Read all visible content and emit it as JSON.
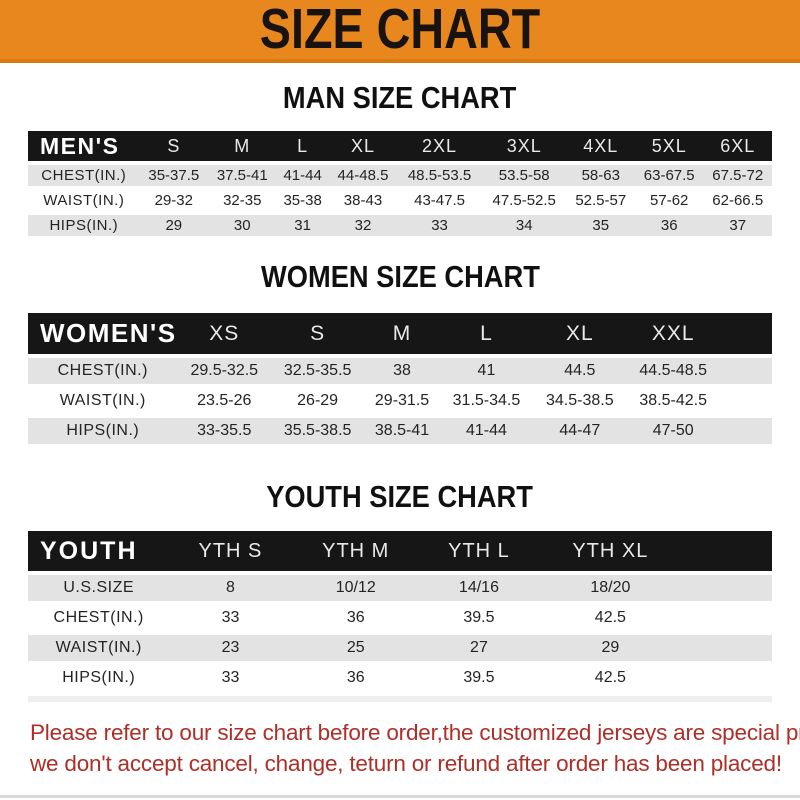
{
  "banner": {
    "title": "SIZE CHART"
  },
  "colors": {
    "banner-bg": "#E8871E",
    "banner-edge": "#D97912",
    "bar-bg": "#161616",
    "row-gray": "#E3E3E3",
    "footer-red": "#AE2E28"
  },
  "sections": [
    {
      "heading": "MAN SIZE CHART",
      "table": {
        "label": "MEN'S",
        "columns": [
          "S",
          "M",
          "L",
          "XL",
          "2XL",
          "3XL",
          "4XL",
          "5XL",
          "6XL"
        ],
        "trailing_blank": false,
        "rows": [
          {
            "label": "CHEST(IN.)",
            "values": [
              "35-37.5",
              "37.5-41",
              "41-44",
              "44-48.5",
              "48.5-53.5",
              "53.5-58",
              "58-63",
              "63-67.5",
              "67.5-72"
            ]
          },
          {
            "label": "WAIST(IN.)",
            "values": [
              "29-32",
              "32-35",
              "35-38",
              "38-43",
              "43-47.5",
              "47.5-52.5",
              "52.5-57",
              "57-62",
              "62-66.5"
            ]
          },
          {
            "label": "HIPS(IN.)",
            "values": [
              "29",
              "30",
              "31",
              "32",
              "33",
              "34",
              "35",
              "36",
              "37"
            ]
          }
        ]
      }
    },
    {
      "heading": "WOMEN SIZE CHART",
      "table": {
        "label": "WOMEN'S",
        "columns": [
          "XS",
          "S",
          "M",
          "L",
          "XL",
          "XXL"
        ],
        "trailing_blank": true,
        "rows": [
          {
            "label": "CHEST(IN.)",
            "values": [
              "29.5-32.5",
              "32.5-35.5",
              "38",
              "41",
              "44.5",
              "44.5-48.5"
            ]
          },
          {
            "label": "WAIST(IN.)",
            "values": [
              "23.5-26",
              "26-29",
              "29-31.5",
              "31.5-34.5",
              "34.5-38.5",
              "38.5-42.5"
            ]
          },
          {
            "label": "HIPS(IN.)",
            "values": [
              "33-35.5",
              "35.5-38.5",
              "38.5-41",
              "41-44",
              "44-47",
              "47-50"
            ]
          }
        ]
      }
    },
    {
      "heading": "YOUTH SIZE CHART",
      "table": {
        "label": "YOUTH",
        "columns": [
          "YTH S",
          "YTH M",
          "YTH L",
          "YTH XL"
        ],
        "trailing_blank": true,
        "rows": [
          {
            "label": "U.S.SIZE",
            "values": [
              "8",
              "10/12",
              "14/16",
              "18/20"
            ]
          },
          {
            "label": "CHEST(IN.)",
            "values": [
              "33",
              "36",
              "39.5",
              "42.5"
            ]
          },
          {
            "label": "WAIST(IN.)",
            "values": [
              "23",
              "25",
              "27",
              "29"
            ]
          },
          {
            "label": "HIPS(IN.)",
            "values": [
              "33",
              "36",
              "39.5",
              "42.5"
            ]
          }
        ]
      }
    }
  ],
  "footer": {
    "line1": "Please refer to our size chart before order,the customized jerseys are special products,",
    "line2": "we don't accept cancel, change, teturn or refund after order has been placed!"
  }
}
